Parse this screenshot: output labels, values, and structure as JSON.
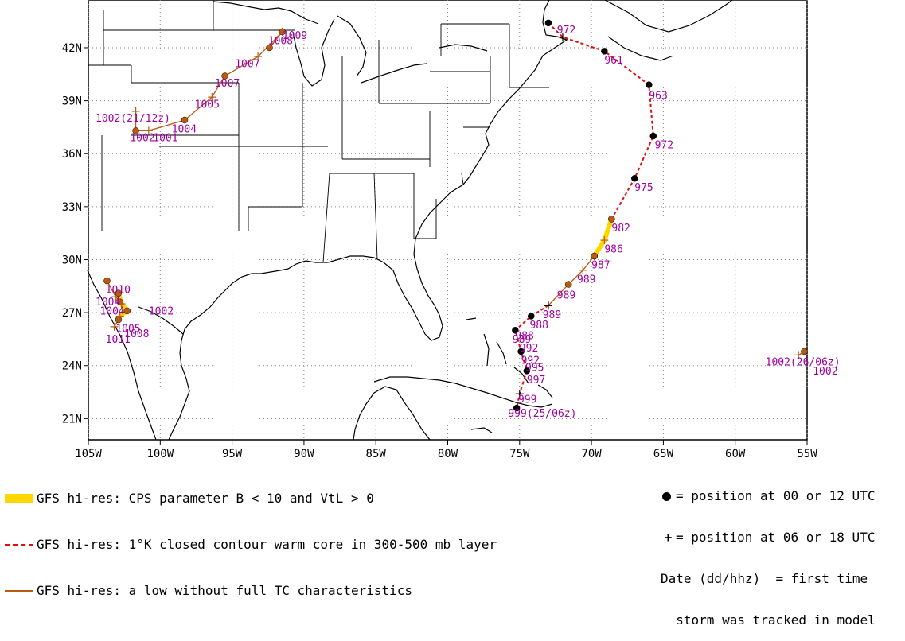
{
  "map": {
    "lat_labels": [
      "42N",
      "39N",
      "36N",
      "33N",
      "30N",
      "27N",
      "24N",
      "21N"
    ],
    "lat_values": [
      42,
      39,
      36,
      33,
      30,
      27,
      24,
      21
    ],
    "lon_labels": [
      "105W",
      "100W",
      "95W",
      "90W",
      "85W",
      "80W",
      "75W",
      "70W",
      "65W",
      "60W",
      "55W"
    ],
    "lon_values": [
      105,
      100,
      95,
      90,
      85,
      80,
      75,
      70,
      65,
      60,
      55
    ],
    "lon_range": [
      105,
      55
    ],
    "lat_range": [
      19.8,
      44.7
    ],
    "grid": true,
    "colors": {
      "warm_core": "#e01010",
      "low": "#b85a10",
      "cps": "#ffd700",
      "labels": "#a000a0",
      "coast": "#000000",
      "grid": "#888888"
    },
    "tracks": [
      {
        "style": "low",
        "points": [
          [
            92.4,
            42.0,
            "dot"
          ],
          [
            91.5,
            42.9,
            "plus"
          ],
          [
            91.5,
            42.9,
            "dot"
          ],
          [
            93.2,
            41.5,
            "plus"
          ],
          [
            95.5,
            40.4,
            "dot"
          ],
          [
            96.4,
            39.2,
            "plus"
          ],
          [
            98.3,
            37.9,
            "dot"
          ],
          [
            100.8,
            37.3,
            "plus"
          ],
          [
            101.7,
            37.3,
            "dot"
          ],
          [
            101.7,
            38.4,
            "plus"
          ]
        ]
      },
      {
        "style": "warm",
        "points": [
          [
            73.0,
            43.4,
            "dot"
          ],
          [
            72.0,
            42.6,
            "plus"
          ],
          [
            69.1,
            41.8,
            "dot"
          ],
          [
            66.0,
            39.9,
            "dot"
          ],
          [
            65.7,
            37.0,
            "dot"
          ],
          [
            67.0,
            34.6,
            "dot"
          ],
          [
            68.6,
            32.3,
            "dot"
          ]
        ]
      },
      {
        "style": "cps",
        "points": [
          [
            68.6,
            32.3,
            "dot"
          ],
          [
            69.1,
            31.1,
            "plus"
          ],
          [
            69.8,
            30.2,
            "dot"
          ]
        ]
      },
      {
        "style": "low",
        "points": [
          [
            69.8,
            30.2,
            "dot"
          ],
          [
            70.6,
            29.4,
            "plus"
          ],
          [
            71.6,
            28.6,
            "dot"
          ],
          [
            73.0,
            27.4,
            "plus"
          ]
        ]
      },
      {
        "style": "warm",
        "points": [
          [
            73.0,
            27.4,
            "plus"
          ],
          [
            74.2,
            26.8,
            "dot"
          ],
          [
            75.3,
            26.0,
            "dot"
          ],
          [
            74.9,
            24.8,
            "dot"
          ],
          [
            74.5,
            23.7,
            "dot"
          ],
          [
            75.0,
            22.4,
            "plus"
          ],
          [
            75.2,
            21.6,
            "dot"
          ]
        ]
      },
      {
        "style": "low",
        "points": [
          [
            55.2,
            24.8,
            "dot"
          ],
          [
            55.6,
            24.6,
            "plus"
          ]
        ]
      },
      {
        "style": "low",
        "points": [
          [
            103.7,
            28.8,
            "dot"
          ],
          [
            103.1,
            27.9,
            "plus"
          ],
          [
            102.8,
            27.6,
            "dot"
          ],
          [
            102.6,
            27.2,
            "plus"
          ],
          [
            102.9,
            26.6,
            "dot"
          ],
          [
            103.2,
            26.2,
            "plus"
          ]
        ]
      },
      {
        "style": "cps",
        "points": [
          [
            102.9,
            28.1,
            "dot"
          ],
          [
            102.7,
            27.5,
            "plus"
          ],
          [
            102.3,
            27.1,
            "dot"
          ],
          [
            102.8,
            26.8,
            "plus"
          ]
        ]
      }
    ],
    "labels": [
      {
        "text": "972",
        "lon": 72.4,
        "lat": 42.8
      },
      {
        "text": "961",
        "lon": 69.1,
        "lat": 41.1
      },
      {
        "text": "963",
        "lon": 66.0,
        "lat": 39.1
      },
      {
        "text": "972",
        "lon": 65.6,
        "lat": 36.3
      },
      {
        "text": "975",
        "lon": 67.0,
        "lat": 33.9
      },
      {
        "text": "982",
        "lon": 68.6,
        "lat": 31.6
      },
      {
        "text": "986",
        "lon": 69.1,
        "lat": 30.4
      },
      {
        "text": "987",
        "lon": 70.0,
        "lat": 29.5
      },
      {
        "text": "989",
        "lon": 71.0,
        "lat": 28.7
      },
      {
        "text": "989",
        "lon": 72.4,
        "lat": 27.8
      },
      {
        "text": "989",
        "lon": 73.4,
        "lat": 26.7
      },
      {
        "text": "988",
        "lon": 74.3,
        "lat": 26.1
      },
      {
        "text": "988",
        "lon": 75.3,
        "lat": 25.5
      },
      {
        "text": "989",
        "lon": 75.5,
        "lat": 25.3
      },
      {
        "text": "992",
        "lon": 75.0,
        "lat": 24.8
      },
      {
        "text": "992",
        "lon": 74.9,
        "lat": 24.1
      },
      {
        "text": "995",
        "lon": 74.6,
        "lat": 23.7
      },
      {
        "text": "997",
        "lon": 74.5,
        "lat": 23.0
      },
      {
        "text": "999",
        "lon": 75.1,
        "lat": 21.9
      },
      {
        "text": "999(25/06z)",
        "lon": 75.8,
        "lat": 21.1
      },
      {
        "text": "1002(26/06z)",
        "lon": 57.9,
        "lat": 24.0
      },
      {
        "text": "1002",
        "lon": 54.6,
        "lat": 23.5
      },
      {
        "text": "1009",
        "lon": 91.5,
        "lat": 42.5
      },
      {
        "text": "1008",
        "lon": 92.5,
        "lat": 42.2
      },
      {
        "text": "1007",
        "lon": 94.8,
        "lat": 40.9
      },
      {
        "text": "1007",
        "lon": 96.2,
        "lat": 39.8
      },
      {
        "text": "1005",
        "lon": 97.6,
        "lat": 38.6
      },
      {
        "text": "1004",
        "lon": 99.2,
        "lat": 37.2
      },
      {
        "text": "1002(21/12z)",
        "lon": 104.5,
        "lat": 37.8
      },
      {
        "text": "1002",
        "lon": 102.1,
        "lat": 36.7
      },
      {
        "text": "1001",
        "lon": 100.5,
        "lat": 36.7
      },
      {
        "text": "1010",
        "lon": 103.8,
        "lat": 28.1
      },
      {
        "text": "1004",
        "lon": 104.5,
        "lat": 27.4
      },
      {
        "text": "1004",
        "lon": 104.2,
        "lat": 26.9
      },
      {
        "text": "1002",
        "lon": 100.8,
        "lat": 26.9
      },
      {
        "text": "1005",
        "lon": 103.1,
        "lat": 25.9
      },
      {
        "text": "1008",
        "lon": 102.5,
        "lat": 25.6
      },
      {
        "text": "1011",
        "lon": 103.8,
        "lat": 25.3
      }
    ]
  },
  "legend": {
    "cps": "GFS hi-res: CPS parameter B < 10 and VtL > 0",
    "warm": "GFS hi-res: 1°K closed contour warm core in 300-500 mb layer",
    "low": "GFS hi-res: a low without full TC characteristics"
  },
  "right_legend": {
    "dot": "= position at 00 or 12 UTC",
    "plus": "= position at 06 or 18 UTC",
    "date1": "Date (dd/hhz)  = first time",
    "date2": "  storm was tracked in model",
    "plus_glyph": "+"
  }
}
